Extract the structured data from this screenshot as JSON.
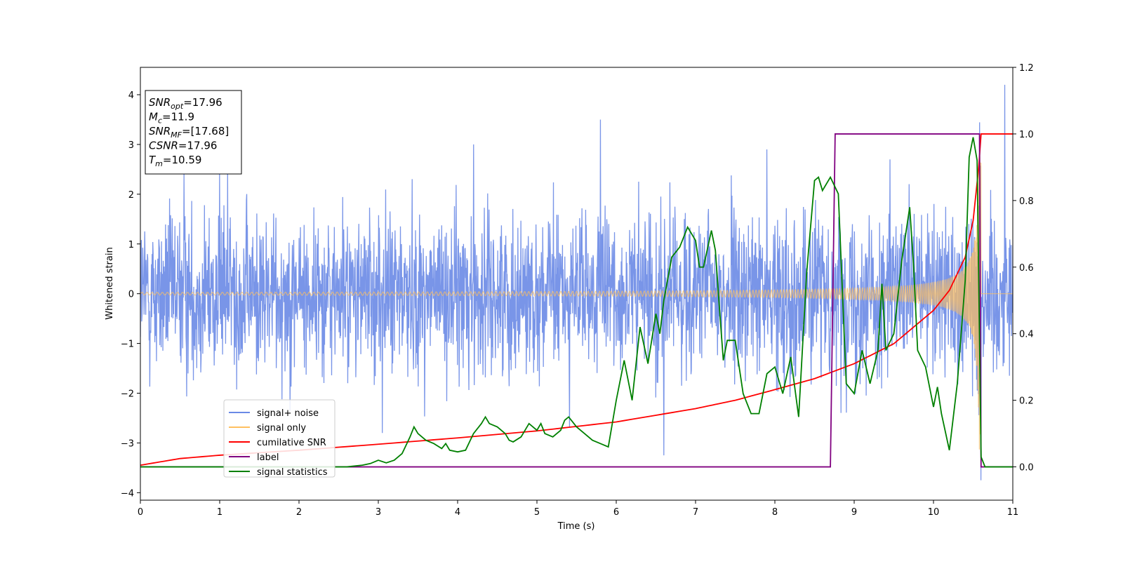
{
  "chart_data": {
    "type": "line",
    "title": "",
    "xlabel": "Time (s)",
    "ylabel": "Whitened strain",
    "y2label": "",
    "xlim": [
      0,
      11
    ],
    "ylim": [
      -4.15,
      4.55
    ],
    "y2lim": [
      -0.1,
      1.2
    ],
    "xticks": [
      "0",
      "1",
      "2",
      "3",
      "4",
      "5",
      "6",
      "7",
      "8",
      "9",
      "10",
      "11"
    ],
    "yticks": [
      "−4",
      "−3",
      "−2",
      "−1",
      "0",
      "1",
      "2",
      "3",
      "4"
    ],
    "y2ticks": [
      "0.0",
      "0.2",
      "0.4",
      "0.6",
      "0.8",
      "1.0",
      "1.2"
    ],
    "grid": false,
    "legend_position": "lower-left",
    "colors": {
      "signal_noise": "#6a8ae6",
      "signal_only": "#ffc060",
      "cumulative_snr": "#ff0000",
      "label": "#800080",
      "signal_statistics": "#008000"
    },
    "annotation": {
      "lines": [
        {
          "base": "SNR",
          "sub": "opt",
          "value": "=17.96"
        },
        {
          "base": "M",
          "sub": "c",
          "value": "=11.9"
        },
        {
          "base": "SNR",
          "sub": "MF",
          "value": "=[17.68]"
        },
        {
          "base": "CSNR",
          "sub": "",
          "value": "=17.96"
        },
        {
          "base": "T",
          "sub": "m",
          "value": "=10.59"
        }
      ]
    },
    "series": [
      {
        "name": "signal+ noise",
        "axis": "left",
        "description_values": "noise band",
        "noise_band_sigma": 0.8,
        "peaks": [
          {
            "x": 0.55,
            "y": 2.4
          },
          {
            "x": 1.0,
            "y": 2.4
          },
          {
            "x": 1.1,
            "y": 2.5
          },
          {
            "x": 3.05,
            "y": -2.8
          },
          {
            "x": 4.2,
            "y": 3.0
          },
          {
            "x": 5.8,
            "y": 3.5
          },
          {
            "x": 6.6,
            "y": -3.25
          },
          {
            "x": 7.9,
            "y": 2.9
          },
          {
            "x": 9.45,
            "y": 2.7
          },
          {
            "x": 10.6,
            "y": -3.75
          },
          {
            "x": 10.9,
            "y": 4.2
          }
        ]
      },
      {
        "name": "signal only",
        "axis": "left",
        "chirp": {
          "start_amp": 0.03,
          "merger_time": 10.59,
          "peak_amp": 3.2,
          "end": 10.6
        }
      },
      {
        "name": "cumilative SNR",
        "axis": "right",
        "x": [
          0,
          0.5,
          1,
          2,
          3,
          4,
          5,
          6,
          7,
          7.5,
          8,
          8.5,
          9,
          9.5,
          10,
          10.2,
          10.4,
          10.5,
          10.57,
          10.6,
          11
        ],
        "y": [
          0.005,
          0.025,
          0.035,
          0.05,
          0.068,
          0.087,
          0.108,
          0.135,
          0.175,
          0.2,
          0.232,
          0.265,
          0.31,
          0.37,
          0.47,
          0.53,
          0.63,
          0.74,
          0.9,
          1.0,
          1.0
        ]
      },
      {
        "name": "label",
        "axis": "right",
        "x": [
          0,
          8.7,
          8.76,
          10.57,
          10.58,
          10.6,
          11
        ],
        "y": [
          0,
          0,
          1,
          1,
          1,
          0,
          0
        ]
      },
      {
        "name": "signal statistics",
        "axis": "right",
        "x": [
          0,
          2.6,
          2.8,
          2.9,
          3.0,
          3.1,
          3.2,
          3.3,
          3.4,
          3.45,
          3.5,
          3.6,
          3.7,
          3.8,
          3.85,
          3.9,
          4.0,
          4.1,
          4.2,
          4.3,
          4.35,
          4.4,
          4.5,
          4.6,
          4.65,
          4.7,
          4.8,
          4.9,
          5.0,
          5.05,
          5.1,
          5.2,
          5.3,
          5.35,
          5.4,
          5.5,
          5.6,
          5.7,
          5.8,
          5.9,
          6.0,
          6.1,
          6.2,
          6.3,
          6.4,
          6.5,
          6.55,
          6.6,
          6.7,
          6.8,
          6.9,
          7.0,
          7.05,
          7.1,
          7.2,
          7.25,
          7.3,
          7.35,
          7.4,
          7.5,
          7.6,
          7.7,
          7.8,
          7.9,
          8.0,
          8.1,
          8.2,
          8.3,
          8.4,
          8.5,
          8.55,
          8.6,
          8.7,
          8.8,
          8.9,
          9.0,
          9.1,
          9.2,
          9.3,
          9.35,
          9.4,
          9.5,
          9.6,
          9.7,
          9.75,
          9.8,
          9.9,
          10.0,
          10.05,
          10.1,
          10.2,
          10.3,
          10.4,
          10.45,
          10.5,
          10.55,
          10.6,
          10.65,
          10.7,
          11
        ],
        "y": [
          0.0,
          0.0,
          0.005,
          0.01,
          0.02,
          0.012,
          0.02,
          0.04,
          0.09,
          0.12,
          0.1,
          0.08,
          0.07,
          0.055,
          0.07,
          0.05,
          0.045,
          0.05,
          0.1,
          0.13,
          0.15,
          0.13,
          0.12,
          0.1,
          0.08,
          0.075,
          0.09,
          0.13,
          0.11,
          0.13,
          0.1,
          0.09,
          0.11,
          0.14,
          0.15,
          0.12,
          0.1,
          0.08,
          0.07,
          0.06,
          0.2,
          0.32,
          0.2,
          0.42,
          0.31,
          0.46,
          0.4,
          0.5,
          0.63,
          0.66,
          0.72,
          0.68,
          0.6,
          0.6,
          0.71,
          0.65,
          0.48,
          0.32,
          0.38,
          0.38,
          0.22,
          0.16,
          0.16,
          0.28,
          0.3,
          0.22,
          0.33,
          0.15,
          0.58,
          0.86,
          0.87,
          0.83,
          0.87,
          0.82,
          0.25,
          0.22,
          0.35,
          0.25,
          0.35,
          0.55,
          0.35,
          0.4,
          0.62,
          0.78,
          0.6,
          0.35,
          0.3,
          0.18,
          0.24,
          0.16,
          0.05,
          0.25,
          0.56,
          0.93,
          0.99,
          0.92,
          0.03,
          0.0,
          0.0,
          0.0
        ]
      }
    ]
  }
}
